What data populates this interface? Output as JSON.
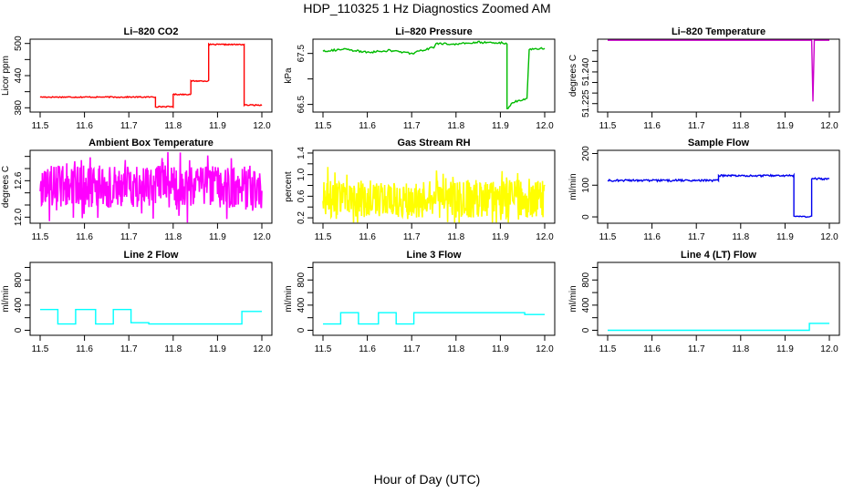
{
  "figure": {
    "title": "HDP_110325  1 Hz Diagnostics Zoomed AM",
    "xlabel": "Hour of Day (UTC)",
    "x_ticks": [
      11.5,
      11.6,
      11.7,
      11.8,
      11.9,
      12.0
    ],
    "x_tick_labels": [
      "11.5",
      "11.6",
      "11.7",
      "11.8",
      "11.9",
      "12.0"
    ],
    "xlim": [
      11.5,
      12.0
    ]
  },
  "chart_data": [
    {
      "id": "co2",
      "type": "line",
      "title": "Li–820 CO2",
      "ylabel": "Licor ppm",
      "color": "#ff0000",
      "ylim": [
        372,
        508
      ],
      "y_ticks": [
        380,
        440,
        500
      ],
      "y_tick_labels": [
        "380",
        "440",
        "500"
      ],
      "y_ticks_minor": [
        410,
        470
      ],
      "kind": "segments",
      "noise": 1,
      "segments": [
        [
          11.5,
          11.76,
          400
        ],
        [
          11.76,
          11.8,
          382
        ],
        [
          11.8,
          11.84,
          405
        ],
        [
          11.84,
          11.88,
          430
        ],
        [
          11.88,
          11.96,
          498
        ],
        [
          11.96,
          12.0,
          385
        ]
      ]
    },
    {
      "id": "pressure",
      "type": "line",
      "title": "Li–820 Pressure",
      "ylabel": "kPa",
      "color": "#00bb00",
      "ylim": [
        66.35,
        67.78
      ],
      "y_ticks": [
        66.5,
        67.5
      ],
      "y_tick_labels": [
        "66.5",
        "67.5"
      ],
      "y_ticks_minor": [
        67.0
      ],
      "kind": "points",
      "points": [
        [
          11.5,
          67.55
        ],
        [
          11.55,
          67.58
        ],
        [
          11.6,
          67.52
        ],
        [
          11.65,
          67.56
        ],
        [
          11.7,
          67.5
        ],
        [
          11.75,
          67.62
        ],
        [
          11.755,
          67.7
        ],
        [
          11.8,
          67.68
        ],
        [
          11.85,
          67.72
        ],
        [
          11.9,
          67.71
        ],
        [
          11.915,
          67.7
        ],
        [
          11.915,
          66.4
        ],
        [
          11.93,
          66.55
        ],
        [
          11.96,
          66.62
        ],
        [
          11.965,
          67.58
        ],
        [
          12.0,
          67.6
        ]
      ]
    },
    {
      "id": "temperature",
      "type": "line",
      "title": "Li–820 Temperature",
      "ylabel": "degrees C",
      "color": "#cc00cc",
      "ylim": [
        51.221,
        51.2555
      ],
      "y_ticks": [
        51.225,
        51.24
      ],
      "y_tick_labels": [
        "51.225",
        "51.240"
      ],
      "y_ticks_minor": [
        51.23,
        51.235,
        51.245,
        51.25
      ],
      "kind": "points",
      "points": [
        [
          11.5,
          51.255
        ],
        [
          11.96,
          51.255
        ],
        [
          11.963,
          51.226
        ],
        [
          11.966,
          51.255
        ],
        [
          12.0,
          51.255
        ]
      ]
    },
    {
      "id": "box_temp",
      "type": "line",
      "title": "Ambient Box Temperature",
      "ylabel": "degrees C",
      "color": "#ff00ff",
      "ylim": [
        11.9,
        13.1
      ],
      "y_ticks": [
        12.0,
        12.6
      ],
      "y_tick_labels": [
        "12.0",
        "12.6"
      ],
      "y_ticks_minor": [
        12.2,
        12.4,
        12.8,
        13.0
      ],
      "kind": "noise",
      "base": 12.5,
      "amp": 0.35
    },
    {
      "id": "rh",
      "type": "line",
      "title": "Gas Stream RH",
      "ylabel": "percent",
      "color": "#ffff00",
      "ylim": [
        0.1,
        1.45
      ],
      "y_ticks": [
        0.2,
        0.6,
        1.0,
        1.4
      ],
      "y_tick_labels": [
        "0.2",
        "0.6",
        "1.0",
        "1.4"
      ],
      "y_ticks_minor": [
        0.4,
        0.8,
        1.2
      ],
      "kind": "noise",
      "base": 0.55,
      "amp": 0.35
    },
    {
      "id": "sample_flow",
      "type": "line",
      "title": "Sample Flow",
      "ylabel": "ml/min",
      "color": "#0000ee",
      "ylim": [
        -20,
        210
      ],
      "y_ticks": [
        0,
        100,
        200
      ],
      "y_tick_labels": [
        "0",
        "100",
        "200"
      ],
      "y_ticks_minor": [],
      "kind": "segments",
      "noise": 3,
      "segments": [
        [
          11.5,
          11.75,
          115
        ],
        [
          11.75,
          11.92,
          130
        ],
        [
          11.92,
          11.96,
          0
        ],
        [
          11.96,
          12.0,
          120
        ]
      ]
    },
    {
      "id": "line2",
      "type": "line",
      "title": "Line 2 Flow",
      "ylabel": "ml/min",
      "color": "#00ffff",
      "ylim": [
        -80,
        1080
      ],
      "y_ticks": [
        0,
        400,
        800
      ],
      "y_tick_labels": [
        "0",
        "400",
        "800"
      ],
      "y_ticks_minor": [
        200,
        600,
        1000
      ],
      "kind": "segments",
      "noise": 0,
      "segments": [
        [
          11.5,
          11.54,
          330
        ],
        [
          11.54,
          11.58,
          100
        ],
        [
          11.58,
          11.625,
          330
        ],
        [
          11.625,
          11.665,
          100
        ],
        [
          11.665,
          11.705,
          330
        ],
        [
          11.705,
          11.745,
          120
        ],
        [
          11.745,
          11.955,
          100
        ],
        [
          11.955,
          12.0,
          300
        ]
      ]
    },
    {
      "id": "line3",
      "type": "line",
      "title": "Line 3 Flow",
      "ylabel": "ml/min",
      "color": "#00ffff",
      "ylim": [
        -80,
        1080
      ],
      "y_ticks": [
        0,
        400,
        800
      ],
      "y_tick_labels": [
        "0",
        "400",
        "800"
      ],
      "y_ticks_minor": [
        200,
        600,
        1000
      ],
      "kind": "segments",
      "noise": 0,
      "segments": [
        [
          11.5,
          11.54,
          100
        ],
        [
          11.54,
          11.58,
          280
        ],
        [
          11.58,
          11.625,
          100
        ],
        [
          11.625,
          11.665,
          280
        ],
        [
          11.665,
          11.705,
          100
        ],
        [
          11.705,
          11.955,
          280
        ],
        [
          11.955,
          12.0,
          250
        ]
      ]
    },
    {
      "id": "line4",
      "type": "line",
      "title": "Line 4 (LT) Flow",
      "ylabel": "ml/min",
      "color": "#00ffff",
      "ylim": [
        -80,
        1080
      ],
      "y_ticks": [
        0,
        400,
        800
      ],
      "y_tick_labels": [
        "0",
        "400",
        "800"
      ],
      "y_ticks_minor": [
        200,
        600,
        1000
      ],
      "kind": "segments",
      "noise": 0,
      "segments": [
        [
          11.5,
          11.955,
          0
        ],
        [
          11.955,
          12.0,
          110
        ]
      ]
    }
  ]
}
